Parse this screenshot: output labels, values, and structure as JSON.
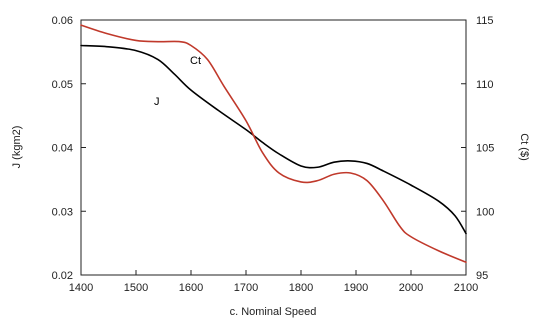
{
  "chart_data": {
    "type": "line",
    "title": "",
    "xlabel": "c. Nominal Speed",
    "ylabel_left": "J (kgm2)",
    "ylabel_right": "Ct ($)",
    "xlim": [
      1400,
      2100
    ],
    "ylim_left": [
      0.02,
      0.06
    ],
    "ylim_right": [
      95,
      115
    ],
    "x_ticks": [
      "1400",
      "1500",
      "1600",
      "1700",
      "1800",
      "1900",
      "2000",
      "2100"
    ],
    "y_left_ticks": [
      "0.02",
      "0.03",
      "0.04",
      "0.05",
      "0.06"
    ],
    "y_right_ticks": [
      "95",
      "100",
      "105",
      "110",
      "115"
    ],
    "grid": false,
    "series": [
      {
        "name": "J",
        "axis": "left",
        "color": "#000000",
        "x": [
          1400,
          1450,
          1500,
          1540,
          1570,
          1600,
          1650,
          1700,
          1730,
          1760,
          1800,
          1830,
          1860,
          1890,
          1920,
          1950,
          2000,
          2050,
          2080,
          2100
        ],
        "y": [
          0.056,
          0.0558,
          0.0552,
          0.0538,
          0.0515,
          0.049,
          0.0458,
          0.0428,
          0.0408,
          0.039,
          0.0371,
          0.0369,
          0.0377,
          0.0379,
          0.0375,
          0.0363,
          0.0341,
          0.0316,
          0.0293,
          0.0265
        ]
      },
      {
        "name": "Ct",
        "axis": "right",
        "color": "#c0392b",
        "x": [
          1400,
          1450,
          1500,
          1540,
          1580,
          1600,
          1630,
          1660,
          1700,
          1730,
          1760,
          1800,
          1830,
          1860,
          1890,
          1920,
          1950,
          1980,
          2000,
          2050,
          2100
        ],
        "y": [
          114.6,
          113.9,
          113.4,
          113.3,
          113.3,
          113.0,
          111.9,
          109.8,
          107.1,
          104.6,
          103.0,
          102.3,
          102.4,
          102.9,
          103.0,
          102.4,
          100.8,
          98.8,
          98.0,
          96.9,
          96.0
        ]
      }
    ]
  }
}
